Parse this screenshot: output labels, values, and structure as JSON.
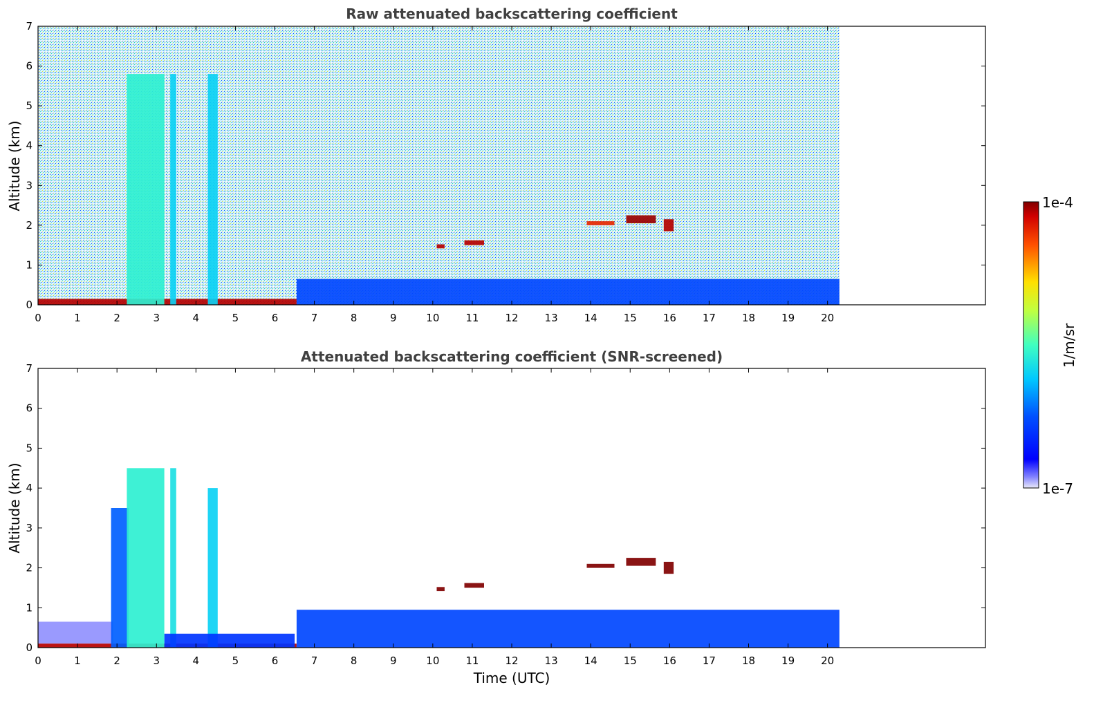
{
  "chart_data": [
    {
      "type": "heatmap",
      "title": "Raw attenuated backscattering coefficient",
      "xlabel": "",
      "ylabel": "Altitude (km)",
      "xlim": [
        0,
        24
      ],
      "ylim": [
        0,
        7
      ],
      "xticks": [
        0,
        1,
        2,
        3,
        4,
        5,
        6,
        7,
        8,
        9,
        10,
        11,
        12,
        13,
        14,
        15,
        16,
        17,
        18,
        19,
        20
      ],
      "yticks": [
        0,
        1,
        2,
        3,
        4,
        5,
        6,
        7
      ],
      "data_end_time": 20.3,
      "features": [
        {
          "label": "clear-air noise background",
          "t": [
            0,
            20.3
          ],
          "alt": [
            0,
            7
          ],
          "log10_beta": -5.4
        },
        {
          "label": "surface layer",
          "t": [
            0,
            6.55
          ],
          "alt": [
            0,
            0.15
          ],
          "log10_beta": -4.1
        },
        {
          "label": "boundary layer",
          "t": [
            6.55,
            20.3
          ],
          "alt": [
            0,
            0.65
          ],
          "log10_beta": -6.3
        },
        {
          "label": "aerosol column",
          "t": [
            2.25,
            3.2
          ],
          "alt": [
            0,
            5.8
          ],
          "log10_beta": -5.6
        },
        {
          "label": "aerosol column",
          "t": [
            3.35,
            3.5
          ],
          "alt": [
            0,
            5.8
          ],
          "log10_beta": -5.8
        },
        {
          "label": "aerosol column",
          "t": [
            4.3,
            4.55
          ],
          "alt": [
            0,
            5.8
          ],
          "log10_beta": -5.8
        },
        {
          "label": "cloud",
          "t": [
            10.1,
            10.3
          ],
          "alt": [
            1.42,
            1.52
          ],
          "log10_beta": -4.1
        },
        {
          "label": "cloud",
          "t": [
            10.8,
            11.3
          ],
          "alt": [
            1.5,
            1.62
          ],
          "log10_beta": -4.1
        },
        {
          "label": "cloud",
          "t": [
            13.9,
            14.6
          ],
          "alt": [
            2.0,
            2.1
          ],
          "log10_beta": -4.3
        },
        {
          "label": "cloud",
          "t": [
            14.9,
            15.65
          ],
          "alt": [
            2.05,
            2.25
          ],
          "log10_beta": -4.05
        },
        {
          "label": "cloud",
          "t": [
            15.85,
            16.1
          ],
          "alt": [
            1.85,
            2.15
          ],
          "log10_beta": -4.1
        }
      ]
    },
    {
      "type": "heatmap",
      "title": "Attenuated backscattering coefficient (SNR-screened)",
      "xlabel": "Time (UTC)",
      "ylabel": "Altitude (km)",
      "xlim": [
        0,
        24
      ],
      "ylim": [
        0,
        7
      ],
      "xticks": [
        0,
        1,
        2,
        3,
        4,
        5,
        6,
        7,
        8,
        9,
        10,
        11,
        12,
        13,
        14,
        15,
        16,
        17,
        18,
        19,
        20
      ],
      "yticks": [
        0,
        1,
        2,
        3,
        4,
        5,
        6,
        7
      ],
      "data_end_time": 20.3,
      "features": [
        {
          "label": "residual layer",
          "t": [
            0,
            1.9
          ],
          "alt": [
            0.1,
            0.65
          ],
          "log10_beta": -6.9
        },
        {
          "label": "surface layer",
          "t": [
            0,
            6.55
          ],
          "alt": [
            0,
            0.1
          ],
          "log10_beta": -4.1
        },
        {
          "label": "aerosol column",
          "t": [
            1.85,
            2.3
          ],
          "alt": [
            0,
            3.5
          ],
          "log10_beta": -6.2
        },
        {
          "label": "aerosol column",
          "t": [
            2.25,
            3.2
          ],
          "alt": [
            0,
            4.5
          ],
          "log10_beta": -5.6
        },
        {
          "label": "aerosol column",
          "t": [
            3.35,
            3.5
          ],
          "alt": [
            0,
            4.5
          ],
          "log10_beta": -5.7
        },
        {
          "label": "aerosol column",
          "t": [
            4.3,
            4.55
          ],
          "alt": [
            0,
            4.0
          ],
          "log10_beta": -5.8
        },
        {
          "label": "aerosol layer",
          "t": [
            3.2,
            6.5
          ],
          "alt": [
            0,
            0.35
          ],
          "log10_beta": -6.4
        },
        {
          "label": "boundary layer",
          "t": [
            6.55,
            20.3
          ],
          "alt": [
            0,
            0.95
          ],
          "log10_beta": -6.3
        },
        {
          "label": "cloud",
          "t": [
            10.1,
            10.3
          ],
          "alt": [
            1.42,
            1.52
          ],
          "log10_beta": -4.0
        },
        {
          "label": "cloud",
          "t": [
            10.8,
            11.3
          ],
          "alt": [
            1.5,
            1.62
          ],
          "log10_beta": -4.0
        },
        {
          "label": "cloud",
          "t": [
            13.9,
            14.6
          ],
          "alt": [
            2.0,
            2.1
          ],
          "log10_beta": -4.0
        },
        {
          "label": "cloud",
          "t": [
            14.9,
            15.65
          ],
          "alt": [
            2.05,
            2.25
          ],
          "log10_beta": -4.0
        },
        {
          "label": "cloud",
          "t": [
            15.85,
            16.1
          ],
          "alt": [
            1.85,
            2.15
          ],
          "log10_beta": -4.0
        }
      ]
    }
  ],
  "colorbar": {
    "label": "1/m/sr",
    "max_label": "1e-4",
    "min_label": "1e-7",
    "scale": "log",
    "range_log10": [
      -7,
      -4
    ],
    "colormap": "jet"
  }
}
